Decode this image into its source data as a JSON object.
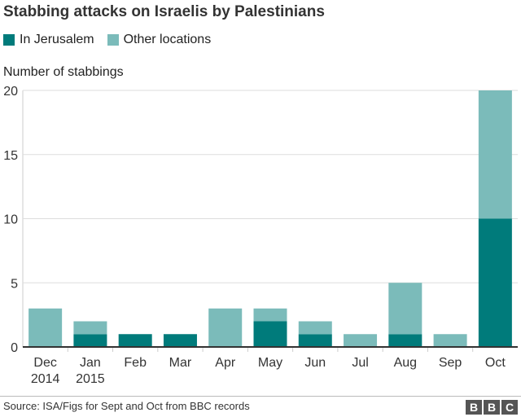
{
  "chart_data": {
    "type": "bar",
    "stacked": true,
    "title": "Stabbing attacks on Israelis by Palestinians",
    "ylabel": "Number of stabbings",
    "ylim": [
      0,
      20
    ],
    "yticks": [
      0,
      5,
      10,
      15,
      20
    ],
    "grid": true,
    "legend": "top-left",
    "categories": [
      [
        "Dec",
        "2014"
      ],
      [
        "Jan",
        "2015"
      ],
      [
        "Feb"
      ],
      [
        "Mar"
      ],
      [
        "Apr"
      ],
      [
        "May"
      ],
      [
        "Jun"
      ],
      [
        "Jul"
      ],
      [
        "Aug"
      ],
      [
        "Sep"
      ],
      [
        "Oct"
      ]
    ],
    "series": [
      {
        "name": "In Jerusalem",
        "color": "#007b7b",
        "values": [
          0,
          1,
          1,
          1,
          0,
          2,
          1,
          0,
          1,
          0,
          10
        ]
      },
      {
        "name": "Other locations",
        "color": "#7bbbba",
        "values": [
          3,
          1,
          0,
          0,
          3,
          1,
          1,
          1,
          4,
          1,
          10
        ]
      }
    ]
  },
  "footer": {
    "source": "Source: ISA/Figs for Sept and Oct from BBC records",
    "logo": "BBC"
  }
}
